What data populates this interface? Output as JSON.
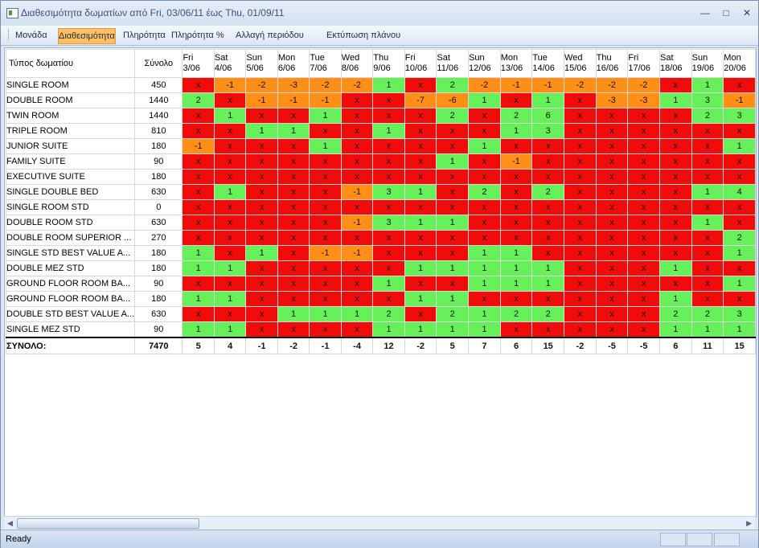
{
  "window": {
    "title": "Διαθεσιμότητα δωματίων από Fri, 03/06/11 έως Thu, 01/09/11"
  },
  "toolbar": {
    "items": [
      {
        "label": "Μονάδα"
      },
      {
        "label": "Διαθεσιμότητα"
      },
      {
        "label": "Πληρότητα"
      },
      {
        "label": "Πληρότητα %"
      },
      {
        "label": "Αλλαγή περιόδου"
      },
      {
        "label": "Εκτύπωση πλάνου"
      }
    ]
  },
  "table": {
    "room_header": "Τύπος δωματίου",
    "total_header": "Σύνολο",
    "days": [
      {
        "day": "Fri",
        "date": "3/06"
      },
      {
        "day": "Sat",
        "date": "4/06"
      },
      {
        "day": "Sun",
        "date": "5/06"
      },
      {
        "day": "Mon",
        "date": "6/06"
      },
      {
        "day": "Tue",
        "date": "7/06"
      },
      {
        "day": "Wed",
        "date": "8/06"
      },
      {
        "day": "Thu",
        "date": "9/06"
      },
      {
        "day": "Fri",
        "date": "10/06"
      },
      {
        "day": "Sat",
        "date": "11/06"
      },
      {
        "day": "Sun",
        "date": "12/06"
      },
      {
        "day": "Mon",
        "date": "13/06"
      },
      {
        "day": "Tue",
        "date": "14/06"
      },
      {
        "day": "Wed",
        "date": "15/06"
      },
      {
        "day": "Thu",
        "date": "16/06"
      },
      {
        "day": "Fri",
        "date": "17/06"
      },
      {
        "day": "Sat",
        "date": "18/06"
      },
      {
        "day": "Sun",
        "date": "19/06"
      },
      {
        "day": "Mon",
        "date": "20/06"
      }
    ],
    "rows": [
      {
        "name": "SINGLE ROOM",
        "total": "450",
        "cells": [
          "x",
          "-1",
          "-2",
          "-3",
          "-2",
          "-2",
          "1",
          "x",
          "2",
          "-2",
          "-1",
          "-1",
          "-2",
          "-2",
          "-2",
          "x",
          "1",
          "x"
        ]
      },
      {
        "name": "DOUBLE ROOM",
        "total": "1440",
        "cells": [
          "2",
          "x",
          "-1",
          "-1",
          "-1",
          "x",
          "x",
          "-7",
          "-6",
          "1",
          "x",
          "1",
          "x",
          "-3",
          "-3",
          "1",
          "3",
          "-1"
        ]
      },
      {
        "name": "TWIN ROOM",
        "total": "1440",
        "cells": [
          "x",
          "1",
          "x",
          "x",
          "1",
          "x",
          "x",
          "x",
          "2",
          "x",
          "2",
          "6",
          "x",
          "x",
          "x",
          "x",
          "2",
          "3"
        ]
      },
      {
        "name": "TRIPLE ROOM",
        "total": "810",
        "cells": [
          "x",
          "x",
          "1",
          "1",
          "x",
          "x",
          "1",
          "x",
          "x",
          "x",
          "1",
          "3",
          "x",
          "x",
          "x",
          "x",
          "x",
          "x"
        ]
      },
      {
        "name": "JUNIOR SUITE",
        "total": "180",
        "cells": [
          "-1",
          "x",
          "x",
          "x",
          "1",
          "x",
          "x",
          "x",
          "x",
          "1",
          "x",
          "x",
          "x",
          "x",
          "x",
          "x",
          "x",
          "1"
        ]
      },
      {
        "name": "FAMILY SUITE",
        "total": "90",
        "cells": [
          "x",
          "x",
          "x",
          "x",
          "x",
          "x",
          "x",
          "x",
          "1",
          "x",
          "-1",
          "x",
          "x",
          "x",
          "x",
          "x",
          "x",
          "x"
        ]
      },
      {
        "name": "EXECUTIVE SUITE",
        "total": "180",
        "cells": [
          "x",
          "x",
          "x",
          "x",
          "x",
          "x",
          "x",
          "x",
          "x",
          "x",
          "x",
          "x",
          "x",
          "x",
          "x",
          "x",
          "x",
          "x"
        ]
      },
      {
        "name": "SINGLE DOUBLE BED",
        "total": "630",
        "cells": [
          "x",
          "1",
          "x",
          "x",
          "x",
          "-1",
          "3",
          "1",
          "x",
          "2",
          "x",
          "2",
          "x",
          "x",
          "x",
          "x",
          "1",
          "4"
        ]
      },
      {
        "name": "SINGLE ROOM STD",
        "total": "0",
        "cells": [
          "x",
          "x",
          "x",
          "x",
          "x",
          "x",
          "x",
          "x",
          "x",
          "x",
          "x",
          "x",
          "x",
          "x",
          "x",
          "x",
          "x",
          "x"
        ]
      },
      {
        "name": "DOUBLE ROOM STD",
        "total": "630",
        "cells": [
          "x",
          "x",
          "x",
          "x",
          "x",
          "-1",
          "3",
          "1",
          "1",
          "x",
          "x",
          "x",
          "x",
          "x",
          "x",
          "x",
          "1",
          "x"
        ]
      },
      {
        "name": "DOUBLE ROOM SUPERIOR ...",
        "total": "270",
        "cells": [
          "x",
          "x",
          "x",
          "x",
          "x",
          "x",
          "x",
          "x",
          "x",
          "x",
          "x",
          "x",
          "x",
          "x",
          "x",
          "x",
          "x",
          "2"
        ]
      },
      {
        "name": "SINGLE STD BEST VALUE A...",
        "total": "180",
        "cells": [
          "1",
          "x",
          "1",
          "x",
          "-1",
          "-1",
          "x",
          "x",
          "x",
          "1",
          "1",
          "x",
          "x",
          "x",
          "x",
          "x",
          "x",
          "1"
        ]
      },
      {
        "name": "DOUBLE MEZ STD",
        "total": "180",
        "cells": [
          "1",
          "1",
          "x",
          "x",
          "x",
          "x",
          "x",
          "1",
          "1",
          "1",
          "1",
          "1",
          "x",
          "x",
          "x",
          "1",
          "x",
          "x"
        ]
      },
      {
        "name": "GROUND FLOOR ROOM BA...",
        "total": "90",
        "cells": [
          "x",
          "x",
          "x",
          "x",
          "x",
          "x",
          "1",
          "x",
          "x",
          "1",
          "1",
          "1",
          "x",
          "x",
          "x",
          "x",
          "x",
          "1"
        ]
      },
      {
        "name": "GROUND FLOOR ROOM BA...",
        "total": "180",
        "cells": [
          "1",
          "1",
          "x",
          "x",
          "x",
          "x",
          "x",
          "1",
          "1",
          "x",
          "x",
          "x",
          "x",
          "x",
          "x",
          "1",
          "x",
          "x"
        ]
      },
      {
        "name": "DOUBLE STD BEST VALUE A...",
        "total": "630",
        "cells": [
          "x",
          "x",
          "x",
          "1",
          "1",
          "1",
          "2",
          "x",
          "2",
          "1",
          "2",
          "2",
          "x",
          "x",
          "x",
          "2",
          "2",
          "3"
        ]
      },
      {
        "name": "SINGLE MEZ STD",
        "total": "90",
        "cells": [
          "1",
          "1",
          "x",
          "x",
          "x",
          "x",
          "1",
          "1",
          "1",
          "1",
          "x",
          "x",
          "x",
          "x",
          "x",
          "1",
          "1",
          "1"
        ]
      }
    ],
    "summary": {
      "name": "ΣΥΝΟΛΟ:",
      "total": "7470",
      "cells": [
        "5",
        "4",
        "-1",
        "-2",
        "-1",
        "-4",
        "12",
        "-2",
        "5",
        "7",
        "6",
        "15",
        "-2",
        "-5",
        "-5",
        "6",
        "11",
        "15"
      ]
    }
  },
  "status": {
    "text": "Ready"
  },
  "colors": {
    "available": "#66f05a",
    "overbooked": "#ff8f17",
    "unavailable": "#f10b0b"
  }
}
